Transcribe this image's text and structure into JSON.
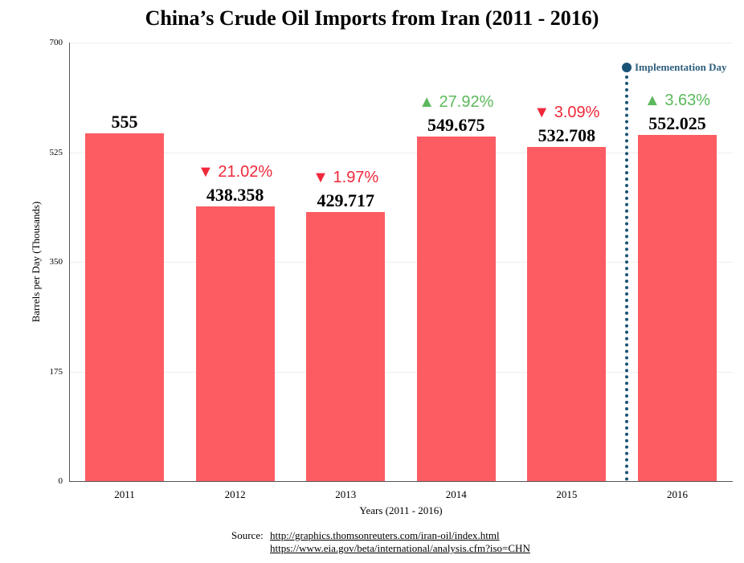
{
  "chart_data": {
    "type": "bar",
    "title": "China’s Crude Oil Imports from Iran (2011 - 2016)",
    "xlabel": "Years (2011 - 2016)",
    "ylabel": "Barrels per Day (Thousands)",
    "ylim": [
      0,
      700
    ],
    "yticks": [
      "0",
      "175",
      "350",
      "525",
      "700"
    ],
    "grid": true,
    "categories": [
      "2011",
      "2012",
      "2013",
      "2014",
      "2015",
      "2016"
    ],
    "values": [
      555,
      438.358,
      429.717,
      549.675,
      532.708,
      552.025
    ],
    "value_labels": [
      "555",
      "438.358",
      "429.717",
      "549.675",
      "532.708",
      "552.025"
    ],
    "changes": [
      null,
      {
        "direction": "down",
        "label": "▼ 21.02%"
      },
      {
        "direction": "down",
        "label": "▼ 1.97%"
      },
      {
        "direction": "up",
        "label": "▲ 27.92%"
      },
      {
        "direction": "down",
        "label": "▼ 3.09%"
      },
      {
        "direction": "up",
        "label": "▲ 3.63%"
      }
    ],
    "annotation": {
      "label": "Implementation Day",
      "between": [
        "2015",
        "2016"
      ]
    },
    "colors": {
      "bar": "#fd5c63",
      "up": "#5cb85c",
      "down": "#f0283a",
      "annotation": "#1a5276"
    }
  },
  "source": {
    "label": "Source:",
    "links": [
      "http://graphics.thomsonreuters.com/iran-oil/index.html",
      "https://www.eia.gov/beta/international/analysis.cfm?iso=CHN"
    ]
  }
}
